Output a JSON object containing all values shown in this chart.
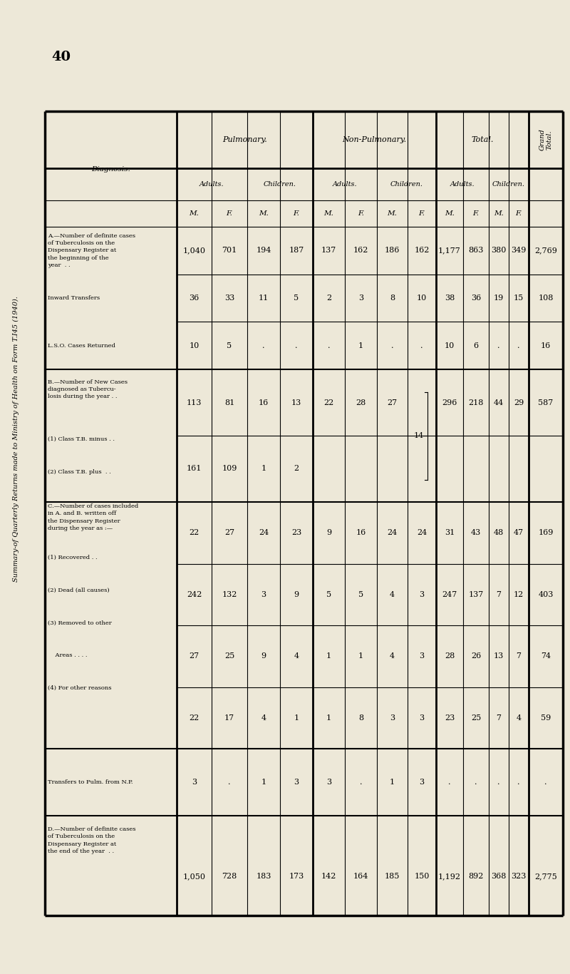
{
  "title": "Summary-of Quarterly Returns made to Ministry of Health on Form T.I45 (1940).",
  "page_number": "40",
  "bg_color": "#ede8d8",
  "sections": [
    {
      "label_lines": [
        "A.—Number of definite cases",
        "of Tuberculosis on the",
        "Dispensary Register at",
        "the beginning of the",
        "year  . .",
        "Inward Transfers",
        "L.S.O. Cases Returned"
      ],
      "data_rows": [
        [
          "1,040",
          "701",
          "194",
          "187",
          "137",
          "162",
          "186",
          "162",
          "1,177",
          "863",
          "380",
          "349",
          "2,769"
        ],
        [
          "36",
          "33",
          "11",
          "5",
          "2",
          "3",
          "8",
          "10",
          "38",
          "36",
          "19",
          "15",
          "108"
        ],
        [
          "10",
          "5",
          ".",
          ".",
          ".",
          "1",
          ".",
          ".",
          "10",
          "6",
          ".",
          ".",
          "16"
        ]
      ],
      "row_labels": [
        "",
        "Inward Transfers",
        "L.S.O. Cases Returned"
      ]
    },
    {
      "label_lines": [
        "B.—Number of New Cases",
        "diagnosed as Tubercu-",
        "losis during the year . .",
        "(1) Class T.B. minus . .",
        "(2) Class T.B. plus  . ."
      ],
      "data_rows": [
        [
          "113",
          "81",
          "16",
          "13",
          "22",
          "28",
          "27",
          "14",
          "296",
          "218",
          "44",
          "29",
          "587"
        ],
        [
          "161",
          "109",
          "1",
          "2",
          "",
          "",
          "",
          "",
          "",
          "",
          "",
          "",
          ""
        ]
      ],
      "row_labels": [
        "(1) Class T.B. minus . .",
        "(2) Class T.B. plus  . ."
      ],
      "brace_col": 7,
      "brace_rows": [
        0,
        1
      ],
      "brace_value": "14"
    },
    {
      "label_lines": [
        "C.—Number of cases included",
        "in A. and B. written off",
        "the Dispensary Register",
        "during the year as :—",
        "(1) Recovered . .",
        "(2) Dead (all causes)",
        "(3) Removed to other",
        "    Areas . . . .",
        "(4) For other reasons"
      ],
      "data_rows": [
        [
          "22",
          "27",
          "24",
          "23",
          "9",
          "16",
          "24",
          "24",
          "31",
          "43",
          "48",
          "47",
          "169"
        ],
        [
          "242",
          "132",
          "3",
          "9",
          "5",
          "5",
          "4",
          "3",
          "247",
          "137",
          "7",
          "12",
          "403"
        ],
        [
          "27",
          "25",
          "9",
          "4",
          "1",
          "1",
          "4",
          "3",
          "28",
          "26",
          "13",
          "7",
          "74"
        ],
        [
          "22",
          "17",
          "4",
          "1",
          "1",
          "8",
          "3",
          "3",
          "23",
          "25",
          "7",
          "4",
          "59"
        ]
      ],
      "row_labels": [
        "(1) Recovered . .",
        "(2) Dead (all causes)",
        "(3) Removed to other Areas",
        "(4) For other reasons"
      ]
    },
    {
      "label_lines": [
        "Transfers to Pulm. from N.P."
      ],
      "data_rows": [
        [
          "3",
          ".",
          "1",
          "3",
          "3",
          ".",
          "1",
          "3",
          ".",
          ".",
          ".",
          ".",
          "."
        ]
      ],
      "row_labels": [
        ""
      ]
    },
    {
      "label_lines": [
        "D.—Number of definite cases",
        "of Tuberculosis on the",
        "Dispensary Register at",
        "the end of the year  . ."
      ],
      "data_rows": [
        [
          "1,050",
          "728",
          "183",
          "173",
          "142",
          "164",
          "185",
          "150",
          "1,192",
          "892",
          "368",
          "323",
          "2,775"
        ]
      ],
      "row_labels": [
        ""
      ]
    }
  ],
  "col_headers": [
    "M.",
    "F.",
    "M.",
    "F.",
    "M.",
    "F.",
    "M.",
    "F.",
    "M.",
    "F.",
    "M.",
    "F."
  ],
  "group_headers": [
    "Pulmonary.",
    "Non-Pulmonary.",
    "Total."
  ],
  "sub_headers": [
    "Adults.",
    "Children.",
    "Adults.",
    "Children.",
    "Adults.",
    "Children."
  ]
}
